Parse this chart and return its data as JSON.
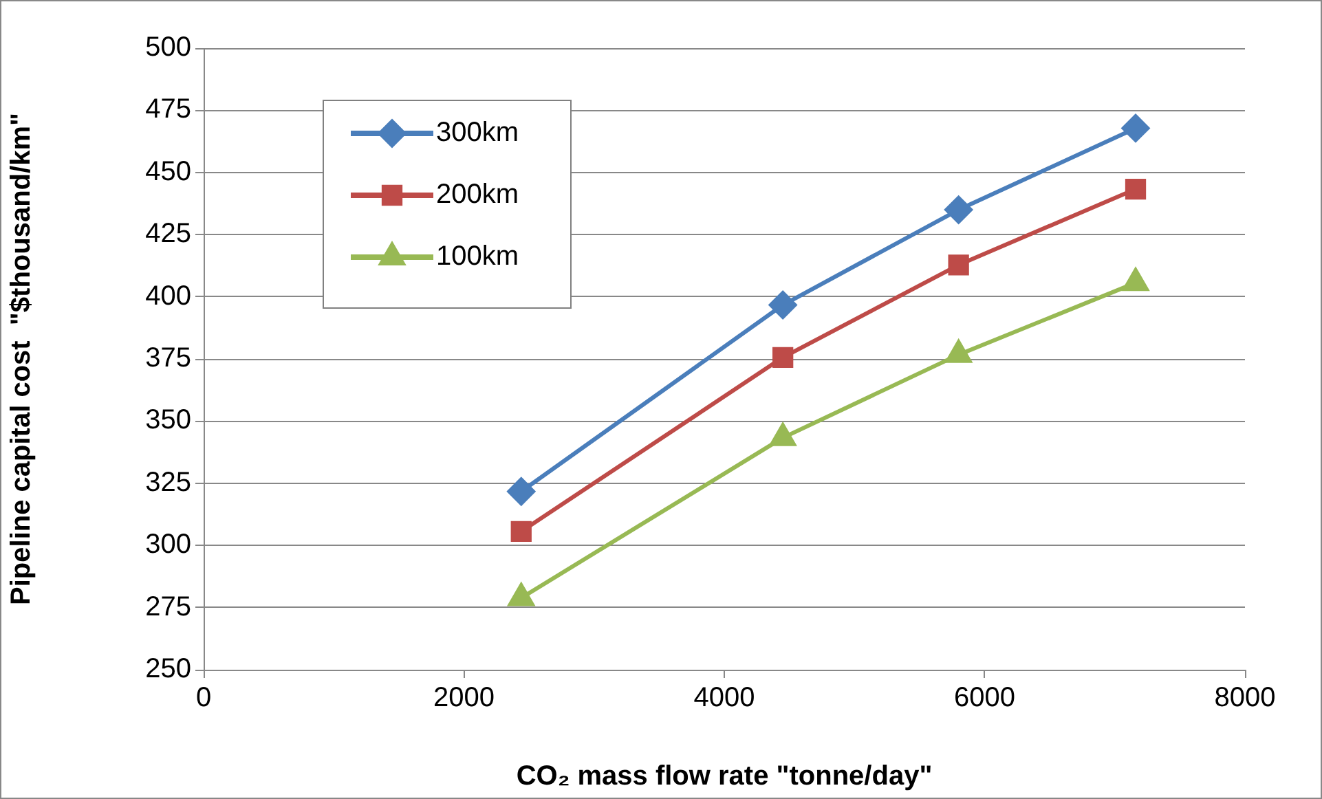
{
  "chart_data": {
    "type": "line",
    "xlabel": "CO₂ mass flow rate \"tonne/day\"",
    "ylabel": "Pipeline capital cost  \"$thousand/km\"",
    "x": [
      2440,
      4450,
      5800,
      7160
    ],
    "series": [
      {
        "name": "300km",
        "color": "#4a7ebb",
        "marker": "diamond",
        "values": [
          321.7,
          396.7,
          435,
          467.8
        ]
      },
      {
        "name": "200km",
        "color": "#be4b48",
        "marker": "square",
        "values": [
          305.6,
          375.6,
          412.8,
          443.3
        ]
      },
      {
        "name": "100km",
        "color": "#98b954",
        "marker": "triangle",
        "values": [
          278.9,
          343.3,
          376.7,
          405.6
        ]
      }
    ],
    "xlim": [
      0,
      8000
    ],
    "xticks": [
      0,
      2000,
      4000,
      6000,
      8000
    ],
    "ylim": [
      250,
      500
    ],
    "yticks": [
      250,
      275,
      300,
      325,
      350,
      375,
      400,
      425,
      450,
      475,
      500
    ],
    "grid": "y",
    "legend": "top left",
    "line_style": "solid"
  }
}
